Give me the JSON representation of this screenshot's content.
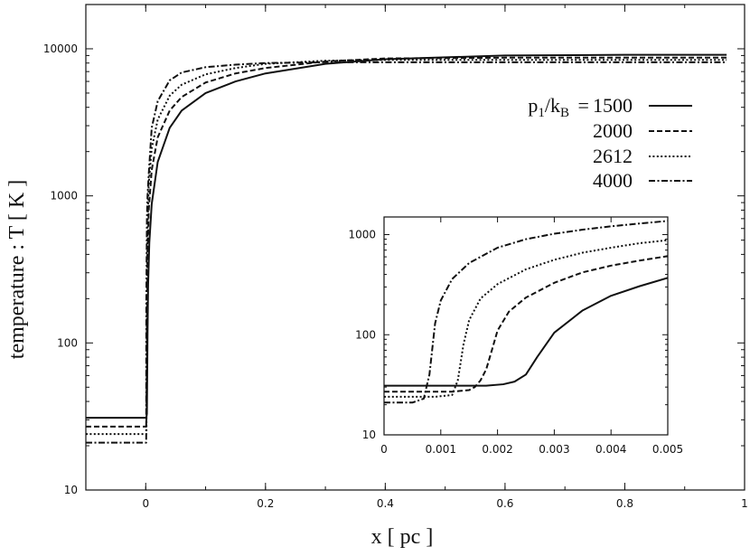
{
  "chart_data": [
    {
      "type": "line",
      "title": "",
      "xlabel": "x [ pc ]",
      "ylabel": "temperature : T [ K ]",
      "xlim": [
        -0.1,
        1.0
      ],
      "ylim": [
        10,
        20000
      ],
      "yscale": "log",
      "grid": false,
      "legend_position": "right",
      "xticks": [
        "0",
        "0.2",
        "0.4",
        "0.6",
        "0.8",
        "1"
      ],
      "yticks": [
        "10",
        "100",
        "1000",
        "10000"
      ],
      "legend_title": "p1/kB =",
      "series": [
        {
          "name": "1500",
          "dash": "solid",
          "x": [
            -0.1,
            0.0,
            0.001,
            0.002,
            0.003,
            0.004,
            0.006,
            0.01,
            0.02,
            0.04,
            0.06,
            0.1,
            0.15,
            0.2,
            0.3,
            0.4,
            0.6,
            0.8,
            0.97
          ],
          "y": [
            31,
            31,
            31,
            33,
            110,
            250,
            480,
            880,
            1700,
            2900,
            3800,
            5000,
            6000,
            6800,
            7900,
            8500,
            9000,
            9100,
            9100
          ]
        },
        {
          "name": "2000",
          "dash": "dashed",
          "x": [
            -0.1,
            0.0,
            0.001,
            0.0018,
            0.003,
            0.005,
            0.01,
            0.02,
            0.04,
            0.06,
            0.1,
            0.15,
            0.2,
            0.3,
            0.4,
            0.6,
            0.8,
            0.97
          ],
          "y": [
            27,
            27,
            27,
            50,
            350,
            800,
            1500,
            2500,
            3800,
            4700,
            5900,
            6800,
            7400,
            8200,
            8600,
            8700,
            8700,
            8700
          ]
        },
        {
          "name": "2612",
          "dash": "dotted",
          "x": [
            -0.1,
            0.0,
            0.0012,
            0.0015,
            0.003,
            0.005,
            0.01,
            0.02,
            0.04,
            0.06,
            0.1,
            0.15,
            0.2,
            0.3,
            0.4,
            0.6,
            0.8,
            0.97
          ],
          "y": [
            24,
            24,
            24,
            90,
            600,
            1200,
            2100,
            3300,
            4800,
            5700,
            6700,
            7400,
            7900,
            8300,
            8400,
            8400,
            8400,
            8400
          ]
        },
        {
          "name": "4000",
          "dash": "dash-dot",
          "x": [
            -0.1,
            0.0,
            0.0008,
            0.001,
            0.002,
            0.003,
            0.005,
            0.01,
            0.02,
            0.04,
            0.06,
            0.1,
            0.15,
            0.2,
            0.3,
            0.4,
            0.6,
            0.8,
            0.97
          ],
          "y": [
            21,
            21,
            21,
            200,
            700,
            1000,
            1400,
            2900,
            4400,
            6100,
            6900,
            7500,
            7800,
            8000,
            8100,
            8100,
            8100,
            8100,
            8100
          ]
        }
      ]
    },
    {
      "type": "line",
      "title": "",
      "xlabel": "",
      "ylabel": "",
      "xlim": [
        0,
        0.005
      ],
      "ylim": [
        10,
        1500
      ],
      "yscale": "log",
      "grid": false,
      "legend_position": "none",
      "xticks": [
        "0",
        "0.001",
        "0.002",
        "0.003",
        "0.004",
        "0.005"
      ],
      "yticks": [
        "10",
        "100",
        "1000"
      ],
      "series": [
        {
          "name": "1500",
          "dash": "solid",
          "x": [
            0,
            0.001,
            0.0018,
            0.0021,
            0.0023,
            0.0025,
            0.0027,
            0.003,
            0.0035,
            0.004,
            0.0045,
            0.005
          ],
          "y": [
            31,
            31,
            31,
            32,
            34,
            40,
            60,
            105,
            175,
            245,
            305,
            370
          ]
        },
        {
          "name": "2000",
          "dash": "dashed",
          "x": [
            0,
            0.0012,
            0.0015,
            0.0016,
            0.0017,
            0.0018,
            0.0019,
            0.002,
            0.0022,
            0.0025,
            0.003,
            0.0035,
            0.004,
            0.0045,
            0.005
          ],
          "y": [
            27,
            27,
            28,
            30,
            35,
            45,
            70,
            110,
            170,
            235,
            330,
            420,
            490,
            550,
            610
          ]
        },
        {
          "name": "2612",
          "dash": "dotted",
          "x": [
            0,
            0.0009,
            0.0012,
            0.0013,
            0.0014,
            0.0015,
            0.0017,
            0.002,
            0.0025,
            0.003,
            0.0035,
            0.004,
            0.0045,
            0.005
          ],
          "y": [
            24,
            24,
            25,
            35,
            80,
            140,
            230,
            320,
            450,
            560,
            660,
            740,
            820,
            880
          ]
        },
        {
          "name": "4000",
          "dash": "dash-dot",
          "x": [
            0,
            0.0005,
            0.0007,
            0.0008,
            0.0009,
            0.001,
            0.0012,
            0.0015,
            0.002,
            0.0025,
            0.003,
            0.0035,
            0.004,
            0.0045,
            0.005
          ],
          "y": [
            21,
            21,
            23,
            40,
            130,
            220,
            360,
            520,
            740,
            900,
            1020,
            1120,
            1210,
            1290,
            1370
          ]
        }
      ]
    }
  ]
}
